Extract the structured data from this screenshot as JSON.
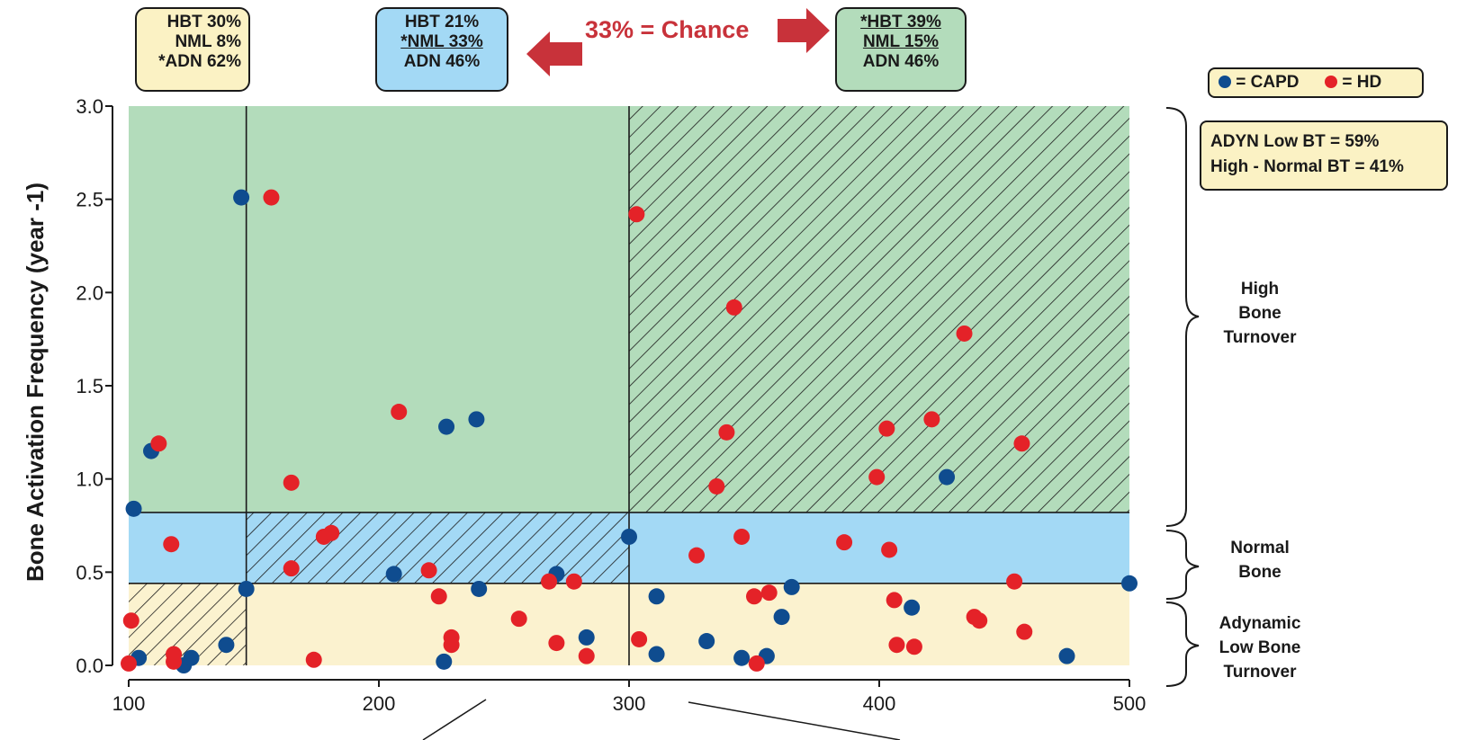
{
  "colors": {
    "capd": "#0f4c8f",
    "hd": "#e42228",
    "green_region": "#b3dcbb",
    "blue_region": "#a3d9f5",
    "yellow_region": "#fbf2cf",
    "arrow": "#c8323a"
  },
  "boxes": {
    "left": {
      "line1": "HBT 30%",
      "line2": "NML 8%",
      "line3": "*ADN 62%"
    },
    "middle": {
      "line1": "HBT 21%",
      "line2": "*NML 33%",
      "line3": "ADN 46%"
    },
    "right": {
      "line1": "*HBT 39%",
      "line2": "NML 15%",
      "line3": "ADN 46%"
    }
  },
  "chance_label": "33% = Chance",
  "legend": {
    "capd_label": "= CAPD",
    "hd_label": "= HD"
  },
  "summary": {
    "line1": "ADYN Low BT = 59%",
    "line2": "High - Normal BT = 41%"
  },
  "regions": {
    "high": [
      "High",
      "Bone",
      "Turnover"
    ],
    "normal": [
      "Normal",
      "Bone"
    ],
    "low": [
      "Adynamic",
      "Low Bone",
      "Turnover"
    ]
  },
  "chart_data": {
    "type": "scatter",
    "title": "",
    "ylabel": "Bone Activation Frequency (year -1)",
    "xlabel": "",
    "xlim": [
      100,
      500
    ],
    "ylim": [
      0,
      3.0
    ],
    "x_ticks": [
      "100",
      "200",
      "300",
      "400",
      "500"
    ],
    "y_ticks": [
      "0.0",
      "0.5",
      "1.0",
      "1.5",
      "2.0",
      "2.5",
      "3.0"
    ],
    "thresholds": {
      "x": [
        147,
        300
      ],
      "y": [
        0.44,
        0.82
      ]
    },
    "series": [
      {
        "name": "CAPD",
        "points": [
          [
            102,
            0.84
          ],
          [
            104,
            0.04
          ],
          [
            109,
            1.15
          ],
          [
            122,
            0.0
          ],
          [
            125,
            0.04
          ],
          [
            139,
            0.11
          ],
          [
            145,
            2.51
          ],
          [
            147,
            0.41
          ],
          [
            206,
            0.49
          ],
          [
            226,
            0.02
          ],
          [
            227,
            1.28
          ],
          [
            239,
            1.32
          ],
          [
            240,
            0.41
          ],
          [
            271,
            0.49
          ],
          [
            283,
            0.15
          ],
          [
            300,
            0.69
          ],
          [
            311,
            0.37
          ],
          [
            311,
            0.06
          ],
          [
            331,
            0.13
          ],
          [
            345,
            0.04
          ],
          [
            355,
            0.05
          ],
          [
            361,
            0.26
          ],
          [
            365,
            0.42
          ],
          [
            413,
            0.31
          ],
          [
            427,
            1.01
          ],
          [
            475,
            0.05
          ],
          [
            500,
            0.44
          ]
        ]
      },
      {
        "name": "HD",
        "points": [
          [
            100,
            0.01
          ],
          [
            101,
            0.24
          ],
          [
            112,
            1.19
          ],
          [
            117,
            0.65
          ],
          [
            118,
            0.06
          ],
          [
            118,
            0.02
          ],
          [
            157,
            2.51
          ],
          [
            165,
            0.98
          ],
          [
            165,
            0.52
          ],
          [
            178,
            0.69
          ],
          [
            181,
            0.71
          ],
          [
            174,
            0.03
          ],
          [
            208,
            1.36
          ],
          [
            220,
            0.51
          ],
          [
            224,
            0.37
          ],
          [
            229,
            0.15
          ],
          [
            229,
            0.11
          ],
          [
            256,
            0.25
          ],
          [
            268,
            0.45
          ],
          [
            271,
            0.12
          ],
          [
            278,
            0.45
          ],
          [
            283,
            0.05
          ],
          [
            303,
            2.42
          ],
          [
            304,
            0.14
          ],
          [
            327,
            0.59
          ],
          [
            335,
            0.96
          ],
          [
            339,
            1.25
          ],
          [
            342,
            1.92
          ],
          [
            345,
            0.69
          ],
          [
            350,
            0.37
          ],
          [
            351,
            0.01
          ],
          [
            356,
            0.39
          ],
          [
            386,
            0.66
          ],
          [
            399,
            1.01
          ],
          [
            403,
            1.27
          ],
          [
            404,
            0.62
          ],
          [
            406,
            0.35
          ],
          [
            407,
            0.11
          ],
          [
            414,
            0.1
          ],
          [
            421,
            1.32
          ],
          [
            434,
            1.78
          ],
          [
            438,
            0.26
          ],
          [
            440,
            0.24
          ],
          [
            454,
            0.45
          ],
          [
            457,
            1.19
          ],
          [
            458,
            0.18
          ]
        ]
      }
    ]
  }
}
